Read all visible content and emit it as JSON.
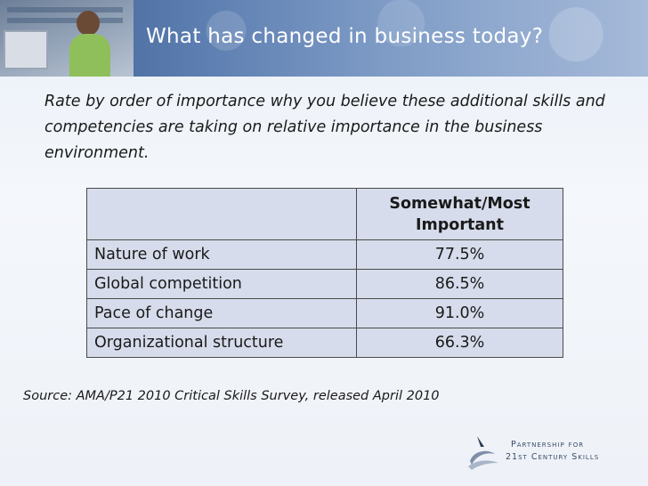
{
  "slide": {
    "title": "What has changed in business today?",
    "prompt": "Rate by order of importance why you believe these additional skills and competencies are taking on relative importance in the business environment."
  },
  "table": {
    "header": {
      "blank": "",
      "column": "Somewhat/Most Important"
    },
    "rows": [
      {
        "label": "Nature of work",
        "value": "77.5%"
      },
      {
        "label": "Global competition",
        "value": "86.5%"
      },
      {
        "label": "Pace of change",
        "value": "91.0%"
      },
      {
        "label": "Organizational structure",
        "value": "66.3%"
      }
    ]
  },
  "source": "Source: AMA/P21 2010 Critical Skills Survey, released April 2010",
  "logo": {
    "line1": "Partnership for",
    "line2": "21st Century Skills",
    "icon": "swoosh-logo-icon"
  },
  "colors": {
    "banner": "#4f6fa3",
    "table_fill": "#d6dceb",
    "title_text": "#ffffff"
  }
}
